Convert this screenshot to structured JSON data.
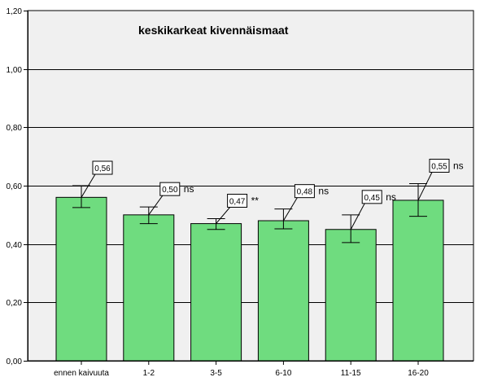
{
  "chart_data": {
    "type": "bar",
    "title": "keskikarkeat kivennäismaat",
    "categories": [
      "ennen kaivuuta",
      "1-2",
      "3-5",
      "6-10",
      "11-15",
      "16-20"
    ],
    "values": [
      0.56,
      0.5,
      0.47,
      0.48,
      0.45,
      0.55
    ],
    "value_labels": [
      "0,56",
      "0,50",
      "0,47",
      "0,48",
      "0,45",
      "0,55"
    ],
    "significance": [
      "",
      "ns",
      "**",
      "ns",
      "ns",
      "ns"
    ],
    "error_low": [
      0.525,
      0.47,
      0.45,
      0.452,
      0.405,
      0.495
    ],
    "error_high": [
      0.6,
      0.527,
      0.487,
      0.52,
      0.5,
      0.607
    ],
    "ylim": [
      0,
      1.2
    ],
    "yticks": [
      0,
      0.2,
      0.4,
      0.6,
      0.8,
      1.0,
      1.2
    ],
    "ytick_labels": [
      "0,00",
      "0,20",
      "0,40",
      "0,60",
      "0,80",
      "1,00",
      "1,20"
    ],
    "grid": true,
    "colors": {
      "bar_fill": "#6FDC7F",
      "bar_stroke": "#000000",
      "plot_bg": "#F0F0F0",
      "grid": "#000000"
    }
  }
}
